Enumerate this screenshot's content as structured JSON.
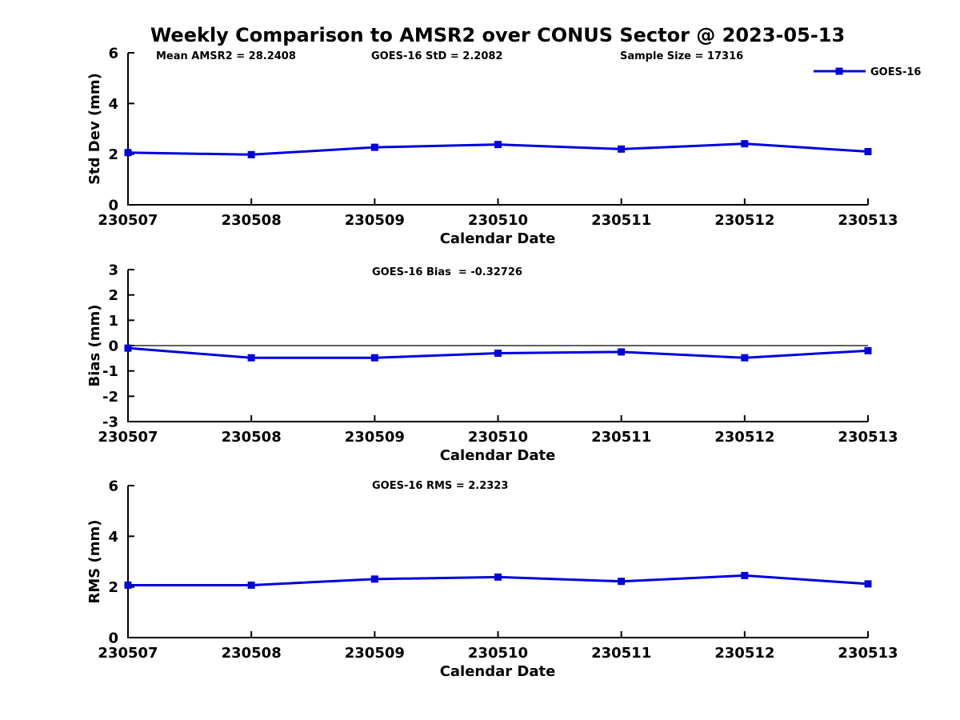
{
  "figure": {
    "title": "Weekly Comparison to AMSR2 over CONUS Sector @ 2023-05-13",
    "background": "#ffffff",
    "text_color": "#000000"
  },
  "chart_data": [
    {
      "type": "line",
      "ylabel": "Std Dev (mm)",
      "xlabel": "Calendar Date",
      "categories": [
        "230507",
        "230508",
        "230509",
        "230510",
        "230511",
        "230512",
        "230513"
      ],
      "series": [
        {
          "name": "GOES-16",
          "color": "#0000dd",
          "marker": "square",
          "values": [
            2.06,
            1.98,
            2.27,
            2.38,
            2.2,
            2.41,
            2.1
          ]
        }
      ],
      "ylim": [
        0,
        6
      ],
      "yticks": [
        0,
        2,
        4,
        6
      ],
      "grid": false,
      "zero_line": false,
      "annotations": [
        "Mean AMSR2 = 28.2408",
        "GOES-16 StD = 2.2082",
        "Sample Size = 17316"
      ],
      "legend": {
        "position": "top-right",
        "entries": [
          "GOES-16"
        ]
      }
    },
    {
      "type": "line",
      "ylabel": "Bias (mm)",
      "xlabel": "Calendar Date",
      "categories": [
        "230507",
        "230508",
        "230509",
        "230510",
        "230511",
        "230512",
        "230513"
      ],
      "series": [
        {
          "name": "GOES-16",
          "color": "#0000dd",
          "marker": "square",
          "values": [
            -0.1,
            -0.48,
            -0.48,
            -0.3,
            -0.25,
            -0.48,
            -0.2
          ]
        }
      ],
      "ylim": [
        -3,
        3
      ],
      "yticks": [
        -3,
        -2,
        -1,
        0,
        1,
        2,
        3
      ],
      "grid": false,
      "zero_line": true,
      "annotations": [
        "GOES-16 Bias  = -0.32726"
      ]
    },
    {
      "type": "line",
      "ylabel": "RMS (mm)",
      "xlabel": "Calendar Date",
      "categories": [
        "230507",
        "230508",
        "230509",
        "230510",
        "230511",
        "230512",
        "230513"
      ],
      "series": [
        {
          "name": "GOES-16",
          "color": "#0000dd",
          "marker": "square",
          "values": [
            2.07,
            2.07,
            2.31,
            2.39,
            2.22,
            2.45,
            2.12
          ]
        }
      ],
      "ylim": [
        0,
        6
      ],
      "yticks": [
        0,
        2,
        4,
        6
      ],
      "grid": false,
      "zero_line": false,
      "annotations": [
        "GOES-16 RMS = 2.2323"
      ]
    }
  ]
}
